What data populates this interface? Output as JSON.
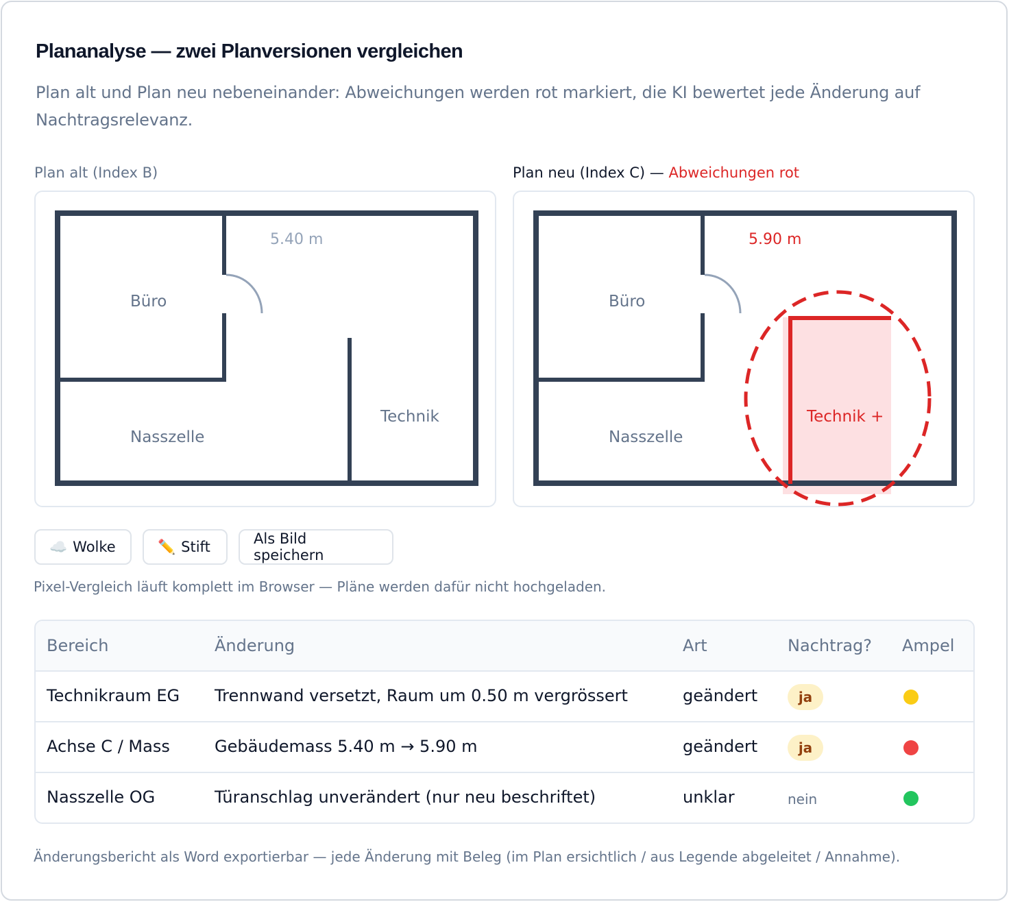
{
  "header": {
    "title": "Plananalyse — zwei Planversionen vergleichen",
    "subtitle": "Plan alt und Plan neu nebeneinander: Abweichungen werden rot markiert, die KI bewertet jede Änderung auf Nachtragsrelevanz."
  },
  "plan_old": {
    "label": "Plan alt (Index B)",
    "dimension": "5.40 m",
    "rooms": {
      "office": "Büro",
      "wetroom": "Nasszelle",
      "technical": "Technik"
    }
  },
  "plan_new": {
    "label": "Plan neu (Index C) — ",
    "label_highlight": "Abweichungen rot",
    "dimension": "5.90 m",
    "rooms": {
      "office": "Büro",
      "wetroom": "Nasszelle",
      "technical": "Technik +"
    }
  },
  "toolbar": {
    "cloud_icon": "☁️",
    "cloud_label": "Wolke",
    "pen_icon": "✏️",
    "pen_label": "Stift",
    "save_label": "Als Bild speichern"
  },
  "hint": "Pixel-Vergleich läuft komplett im Browser — Pläne werden dafür nicht hochgeladen.",
  "table": {
    "headers": [
      "Bereich",
      "Änderung",
      "Art",
      "Nachtrag?",
      "Ampel"
    ],
    "rows": [
      {
        "area": "Technikraum EG",
        "change": "Trennwand versetzt, Raum um 0.50 m vergrössert",
        "type": "geändert",
        "claim": "ja",
        "traffic": "yellow"
      },
      {
        "area": "Achse C / Mass",
        "change": "Gebäudemass 5.40 m → 5.90 m",
        "type": "geändert",
        "claim": "ja",
        "traffic": "red"
      },
      {
        "area": "Nasszelle OG",
        "change": "Türanschlag unverändert (nur neu beschriftet)",
        "type": "unklar",
        "claim": "nein",
        "traffic": "green"
      }
    ]
  },
  "colors": {
    "yellow": "#facc15",
    "red": "#ef4444",
    "green": "#22c55e",
    "accent_red": "#dc2626",
    "wall": "#334155"
  },
  "footer": "Änderungsbericht als Word exportierbar — jede Änderung mit Beleg (im Plan ersichtlich / aus Legende abgeleitet / Annahme)."
}
